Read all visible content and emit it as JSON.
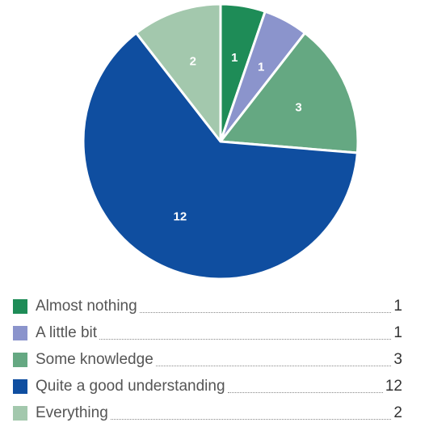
{
  "chart_data": {
    "type": "pie",
    "categories": [
      "Almost nothing",
      "A little bit",
      "Some knowledge",
      "Quite a good understanding",
      "Everything"
    ],
    "values": [
      1,
      1,
      3,
      12,
      2
    ],
    "colors": [
      "#1e8c57",
      "#8b94cc",
      "#65a882",
      "#0f4ea0",
      "#a3c8ad"
    ],
    "title": "",
    "legend_placement": "bottom"
  }
}
